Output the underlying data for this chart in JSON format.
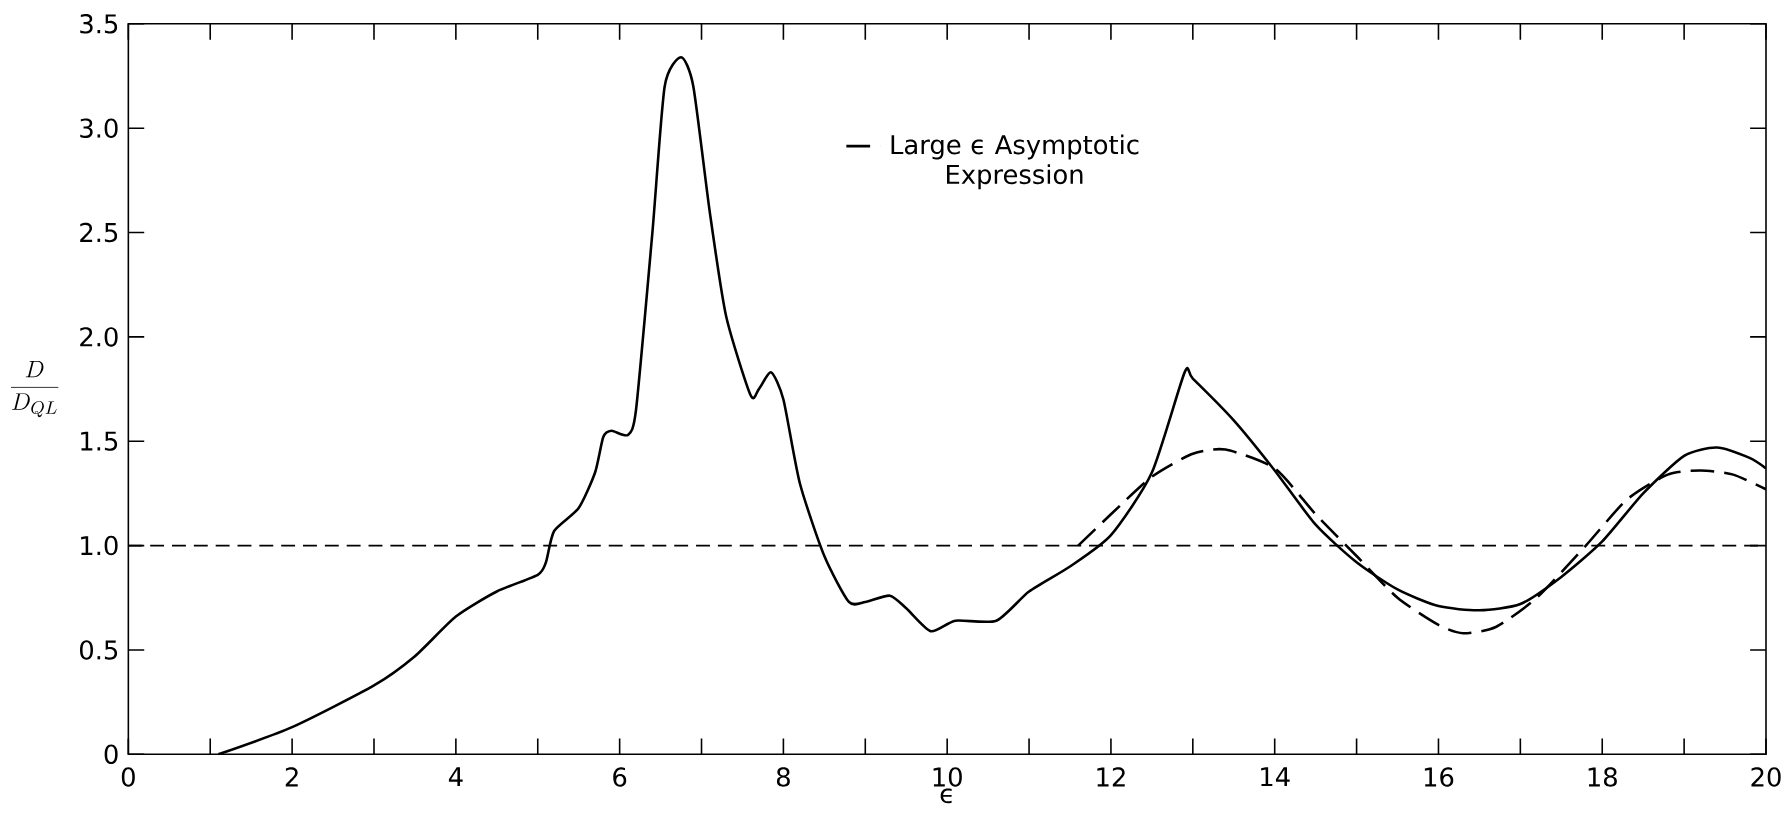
{
  "chart_data": {
    "type": "line",
    "xlabel": "ϵ",
    "ylabel": "\\frac{D}{D_{QL}}",
    "x": [
      1.1,
      2,
      3,
      3.5,
      4,
      4.5,
      5,
      5.1,
      5.2,
      5.5,
      5.7,
      5.8,
      5.9,
      6.1,
      6.2,
      6.4,
      6.55,
      6.75,
      6.9,
      7.1,
      7.3,
      7.6,
      7.7,
      7.85,
      8.0,
      8.2,
      8.5,
      8.8,
      9.0,
      9.3,
      9.5,
      9.8,
      10.1,
      10.6,
      11.0,
      11.5,
      12,
      12.5,
      12.9,
      13.0,
      13.5,
      14,
      14.5,
      15,
      15.5,
      16,
      16.5,
      17,
      17.5,
      18,
      18.5,
      19,
      19.4,
      19.8,
      20
    ],
    "series": [
      {
        "color": "#000000",
        "line_style": "solid",
        "values": [
          0,
          0.13,
          0.33,
          0.47,
          0.66,
          0.78,
          0.86,
          0.92,
          1.07,
          1.18,
          1.35,
          1.52,
          1.55,
          1.53,
          1.65,
          2.5,
          3.2,
          3.34,
          3.2,
          2.6,
          2.1,
          1.72,
          1.75,
          1.83,
          1.7,
          1.3,
          0.95,
          0.73,
          0.73,
          0.76,
          0.7,
          0.59,
          0.64,
          0.64,
          0.78,
          0.9,
          1.05,
          1.35,
          1.83,
          1.8,
          1.6,
          1.36,
          1.1,
          0.92,
          0.79,
          0.71,
          0.69,
          0.72,
          0.85,
          1.02,
          1.25,
          1.43,
          1.47,
          1.42,
          1.37
        ]
      },
      {
        "name": "Large ϵ Asymptotic Expression",
        "color": "#000000",
        "line_style": "dashed",
        "x": [
          11.6,
          12,
          12.5,
          13,
          13.4,
          14,
          14.5,
          15,
          15.5,
          16,
          16.3,
          16.7,
          17.2,
          17.8,
          18.3,
          18.8,
          19.2,
          19.6,
          20
        ],
        "values": [
          1.0,
          1.15,
          1.33,
          1.44,
          1.46,
          1.37,
          1.15,
          0.95,
          0.75,
          0.62,
          0.58,
          0.61,
          0.75,
          1.0,
          1.22,
          1.34,
          1.36,
          1.34,
          1.27
        ]
      }
    ],
    "ref_lines": [
      {
        "axis": "y",
        "value": 1.0,
        "color": "#000000",
        "line_style": "dashed"
      }
    ],
    "xlim": [
      0,
      20
    ],
    "ylim": [
      0,
      3.5
    ],
    "xticks": [
      0,
      {
        "value": 1,
        "label": null
      },
      2,
      {
        "value": 3,
        "label": null
      },
      4,
      {
        "value": 5,
        "label": null
      },
      6,
      {
        "value": 7,
        "label": null
      },
      8,
      {
        "value": 9,
        "label": null
      },
      10,
      {
        "value": 11,
        "label": null
      },
      12,
      {
        "value": 13,
        "label": null
      },
      14,
      {
        "value": 15,
        "label": null
      },
      16,
      {
        "value": 17,
        "label": null
      },
      18,
      {
        "value": 19,
        "label": null
      },
      20
    ],
    "yticks": [
      0,
      0.5,
      {
        "value": 1,
        "label": "1.0"
      },
      1.5,
      {
        "value": 2,
        "label": "2.0"
      },
      2.5,
      {
        "value": 3,
        "label": "3.0"
      },
      3.5
    ],
    "grid": false,
    "legend": "top",
    "marker": "none"
  }
}
